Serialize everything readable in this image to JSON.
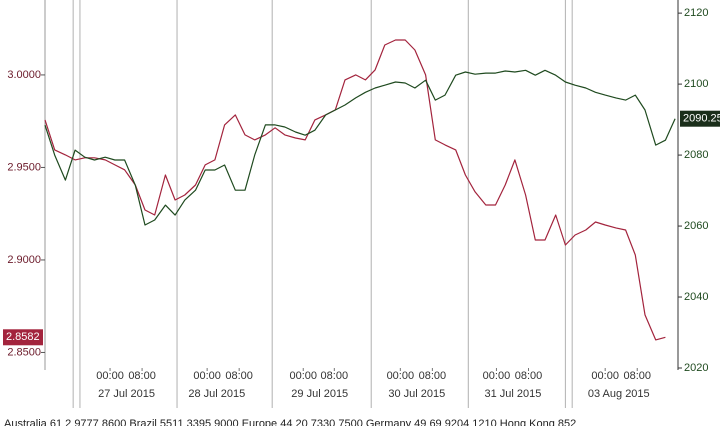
{
  "chart_data": {
    "type": "line",
    "x": [
      -0.36,
      -0.26,
      -0.15,
      -0.05,
      0.05,
      0.15,
      0.26,
      0.36,
      0.46,
      0.57,
      0.67,
      0.77,
      0.88,
      0.98,
      1.08,
      1.19,
      1.29,
      1.39,
      1.49,
      1.6,
      1.7,
      1.8,
      1.91,
      2.01,
      2.11,
      2.22,
      2.32,
      2.42,
      2.53,
      2.63,
      2.73,
      2.84,
      2.94,
      3.04,
      3.14,
      3.25,
      3.35,
      3.45,
      3.56,
      3.66,
      3.76,
      3.87,
      3.97,
      4.07,
      4.18,
      4.28,
      4.38,
      4.48,
      4.59,
      4.69,
      4.79,
      4.9,
      5.0,
      5.1,
      5.21,
      5.31,
      5.41,
      5.52,
      5.62,
      5.72,
      5.82,
      5.93,
      6.03,
      6.13
    ],
    "series": [
      {
        "color": "#a3243d",
        "values": [
          2.9757,
          2.9595,
          2.9568,
          2.9541,
          2.9552,
          2.9552,
          2.9541,
          2.9514,
          2.9487,
          2.9405,
          2.927,
          2.9243,
          2.9459,
          2.9324,
          2.9351,
          2.9405,
          2.9514,
          2.9541,
          2.973,
          2.9784,
          2.9676,
          2.9649,
          2.9676,
          2.9714,
          2.9676,
          2.9659,
          2.9649,
          2.9757,
          2.9784,
          2.9811,
          2.9973,
          3.0,
          2.9973,
          3.0027,
          3.0162,
          3.0189,
          3.0189,
          3.0135,
          3.0,
          2.9649,
          2.9622,
          2.9595,
          2.9459,
          2.9368,
          2.9297,
          2.9297,
          2.9405,
          2.9541,
          2.9351,
          2.9108,
          2.9108,
          2.9243,
          2.9081,
          2.9135,
          2.9162,
          2.9205,
          2.9189,
          2.9173,
          2.9162,
          2.9027,
          2.8703,
          2.8568,
          2.8582,
          null
        ]
      },
      {
        "color": "#1f4a1f",
        "axis": "y2",
        "values": [
          2088.45,
          2080.0,
          2072.96,
          2081.41,
          2079.4,
          2078.6,
          2079.4,
          2078.6,
          2078.6,
          2071.5,
          2060.3,
          2061.7,
          2065.9,
          2063.1,
          2067.3,
          2070.1,
          2075.8,
          2075.8,
          2077.2,
          2070.1,
          2070.1,
          2080.0,
          2088.5,
          2088.5,
          2087.9,
          2086.5,
          2085.6,
          2087.0,
          2091.3,
          2092.7,
          2094.1,
          2096.1,
          2097.7,
          2098.9,
          2099.7,
          2100.6,
          2100.3,
          2098.9,
          2101.1,
          2095.5,
          2096.9,
          2102.5,
          2103.4,
          2102.8,
          2103.1,
          2103.1,
          2103.7,
          2103.4,
          2103.9,
          2102.5,
          2103.9,
          2102.5,
          2100.6,
          2099.7,
          2098.9,
          2097.7,
          2096.9,
          2096.1,
          2095.5,
          2096.9,
          2092.7,
          2082.8,
          2084.2,
          2090.25
        ]
      }
    ],
    "xlim": [
      -0.36,
      6.16
    ],
    "ylim": [
      2.8416,
      3.0405
    ],
    "yticks": [
      {
        "value": 3.0,
        "label": "3.0000"
      },
      {
        "value": 2.95,
        "label": "2.9500"
      },
      {
        "value": 2.9,
        "label": "2.9000"
      },
      {
        "value": 2.85,
        "label": "2.8500"
      }
    ],
    "y2lim": [
      2020,
      2123.7
    ],
    "y2ticks": [
      2020,
      2040,
      2060,
      2080,
      2100,
      2120
    ],
    "xticks": [
      {
        "value": 0.31,
        "label": "00:00"
      },
      {
        "value": 0.64,
        "label": "08:00"
      },
      {
        "value": 1.31,
        "label": "00:00"
      },
      {
        "value": 1.64,
        "label": "08:00"
      },
      {
        "value": 2.3,
        "label": "00:00"
      },
      {
        "value": 2.62,
        "label": "08:00"
      },
      {
        "value": 3.3,
        "label": "00:00"
      },
      {
        "value": 3.63,
        "label": "08:00"
      },
      {
        "value": 4.29,
        "label": "00:00"
      },
      {
        "value": 4.62,
        "label": "08:00"
      },
      {
        "value": 5.41,
        "label": "00:00"
      },
      {
        "value": 5.74,
        "label": "08:00"
      }
    ],
    "day_labels": [
      {
        "value": 0.48,
        "label": "27 Jul 2015"
      },
      {
        "value": 1.41,
        "label": "28 Jul 2015"
      },
      {
        "value": 2.47,
        "label": "29 Jul 2015"
      },
      {
        "value": 3.47,
        "label": "30 Jul 2015"
      },
      {
        "value": 4.46,
        "label": "31 Jul 2015"
      },
      {
        "value": 5.55,
        "label": "03 Aug 2015"
      }
    ],
    "xgrid": [
      -0.07,
      0,
      1,
      1.98,
      3,
      4,
      5,
      5.07
    ],
    "footer": "Australia 61 2 9777 8600 Brazil 5511 3395 9000 Europe 44 20 7330 7500 Germany 49 69 9204 1210 Hong Kong 852"
  }
}
